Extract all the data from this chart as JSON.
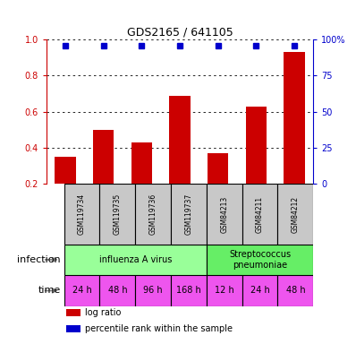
{
  "title": "GDS2165 / 641105",
  "samples": [
    "GSM119734",
    "GSM119735",
    "GSM119736",
    "GSM119737",
    "GSM84213",
    "GSM84211",
    "GSM84212"
  ],
  "log_ratio": [
    0.35,
    0.5,
    0.43,
    0.69,
    0.37,
    0.63,
    0.93
  ],
  "percentile_rank": [
    0.96,
    0.96,
    0.96,
    0.96,
    0.96,
    0.96,
    0.96
  ],
  "infection_groups": [
    {
      "label": "influenza A virus",
      "start": 0,
      "end": 3,
      "color": "#99ff99"
    },
    {
      "label": "Streptococcus\npneumoniae",
      "start": 4,
      "end": 6,
      "color": "#66ee66"
    }
  ],
  "time_labels": [
    "24 h",
    "48 h",
    "96 h",
    "168 h",
    "12 h",
    "24 h",
    "48 h"
  ],
  "bar_color": "#cc0000",
  "dot_color": "#0000cc",
  "ylim_left": [
    0.2,
    1.0
  ],
  "yticks_left": [
    0.2,
    0.4,
    0.6,
    0.8,
    1.0
  ],
  "ytick_labels_right": [
    "0",
    "25",
    "50",
    "75",
    "100%"
  ],
  "label_color_left": "#cc0000",
  "label_color_right": "#0000cc",
  "sample_box_color": "#c8c8c8",
  "time_box_color": "#ee55ee",
  "legend_items": [
    {
      "label": "log ratio",
      "color": "#cc0000"
    },
    {
      "label": "percentile rank within the sample",
      "color": "#0000cc"
    }
  ]
}
